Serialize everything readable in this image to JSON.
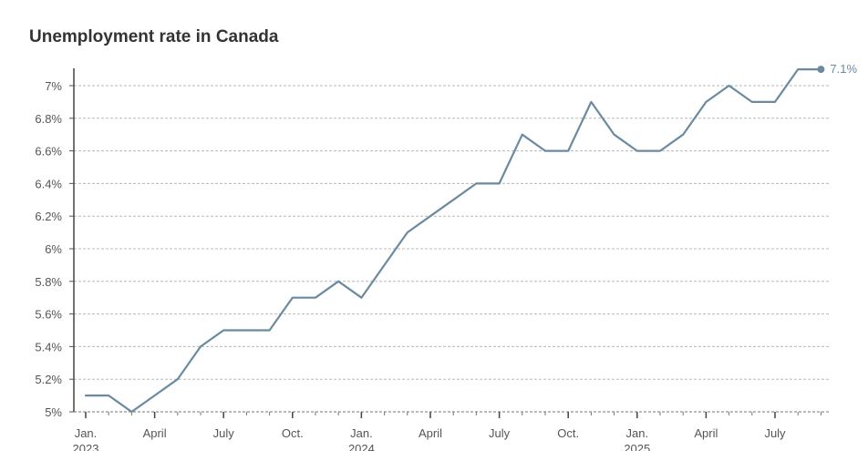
{
  "chart_data": {
    "type": "line",
    "title": "Unemployment rate in Canada",
    "xlabel": "",
    "ylabel": "",
    "ylim": [
      5,
      7.2
    ],
    "y_ticks": [
      5,
      5.2,
      5.4,
      5.6,
      5.8,
      6,
      6.2,
      6.4,
      6.6,
      6.8,
      7
    ],
    "y_tick_labels": [
      "5%",
      "5.2%",
      "5.4%",
      "5.6%",
      "5.8%",
      "6%",
      "6.2%",
      "6.4%",
      "6.6%",
      "6.8%",
      "7%"
    ],
    "x_ticks": [
      {
        "index": 0,
        "label": "Jan.",
        "year": "2023"
      },
      {
        "index": 3,
        "label": "April",
        "year": ""
      },
      {
        "index": 6,
        "label": "July",
        "year": ""
      },
      {
        "index": 9,
        "label": "Oct.",
        "year": ""
      },
      {
        "index": 12,
        "label": "Jan.",
        "year": "2024"
      },
      {
        "index": 15,
        "label": "April",
        "year": ""
      },
      {
        "index": 18,
        "label": "July",
        "year": ""
      },
      {
        "index": 21,
        "label": "Oct.",
        "year": ""
      },
      {
        "index": 24,
        "label": "Jan.",
        "year": "2025"
      },
      {
        "index": 27,
        "label": "April",
        "year": ""
      },
      {
        "index": 30,
        "label": "July",
        "year": ""
      }
    ],
    "x": [
      "2023-01",
      "2023-02",
      "2023-03",
      "2023-04",
      "2023-05",
      "2023-06",
      "2023-07",
      "2023-08",
      "2023-09",
      "2023-10",
      "2023-11",
      "2023-12",
      "2024-01",
      "2024-02",
      "2024-03",
      "2024-04",
      "2024-05",
      "2024-06",
      "2024-07",
      "2024-08",
      "2024-09",
      "2024-10",
      "2024-11",
      "2024-12",
      "2025-01",
      "2025-02",
      "2025-03",
      "2025-04",
      "2025-05",
      "2025-06",
      "2025-07",
      "2025-08",
      "2025-09"
    ],
    "series": [
      {
        "values": [
          5.1,
          5.1,
          5.0,
          5.1,
          5.2,
          5.4,
          5.5,
          5.5,
          5.5,
          5.7,
          5.7,
          5.8,
          5.7,
          5.9,
          6.1,
          6.2,
          6.3,
          6.4,
          6.4,
          6.7,
          6.6,
          6.6,
          6.9,
          6.7,
          6.6,
          6.6,
          6.7,
          6.9,
          7.0,
          6.9,
          6.9,
          7.1,
          7.1
        ],
        "color": "#6b8aa0"
      }
    ],
    "end_label": "7.1%",
    "grid": true,
    "legend": "none"
  }
}
